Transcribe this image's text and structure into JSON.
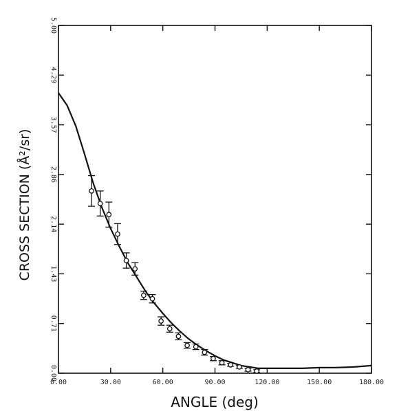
{
  "chart_data": {
    "type": "scatter",
    "title": "",
    "xlabel": "ANGLE (deg)",
    "ylabel": "CROSS SECTION (Å²/sr)",
    "xlim": [
      0,
      180
    ],
    "ylim": [
      0,
      5.0
    ],
    "x_ticks": [
      0,
      30,
      60,
      90,
      120,
      150,
      180
    ],
    "x_tick_labels": [
      "0.00",
      "30.00",
      "60.00",
      "90.00",
      "120.00",
      "150.00",
      "180.00"
    ],
    "y_ticks": [
      0,
      0.714,
      1.429,
      2.143,
      2.857,
      3.571,
      4.286,
      5.0
    ],
    "y_tick_labels": [
      "0.00",
      "0.71",
      "1.43",
      "2.14",
      "2.86",
      "3.57",
      "4.29",
      "5.00"
    ],
    "grid": false,
    "series": [
      {
        "kind": "line",
        "x": [
          0,
          5,
          10,
          15,
          20,
          25,
          30,
          35,
          40,
          45,
          50,
          55,
          60,
          65,
          70,
          75,
          80,
          85,
          90,
          95,
          100,
          105,
          110,
          115,
          120,
          130,
          140,
          150,
          160,
          170,
          180
        ],
        "y": [
          4.03,
          3.85,
          3.55,
          3.15,
          2.73,
          2.38,
          2.08,
          1.82,
          1.58,
          1.38,
          1.18,
          1.01,
          0.86,
          0.72,
          0.6,
          0.49,
          0.4,
          0.32,
          0.25,
          0.19,
          0.15,
          0.11,
          0.09,
          0.07,
          0.07,
          0.07,
          0.07,
          0.08,
          0.08,
          0.09,
          0.11
        ]
      },
      {
        "kind": "points",
        "x": [
          19,
          24,
          29,
          34,
          39,
          44,
          49,
          54,
          59,
          64,
          69,
          74,
          79,
          84,
          89,
          94,
          99,
          104,
          109,
          114
        ],
        "y": [
          2.62,
          2.44,
          2.28,
          2.0,
          1.62,
          1.5,
          1.12,
          1.07,
          0.75,
          0.64,
          0.53,
          0.4,
          0.38,
          0.3,
          0.21,
          0.15,
          0.12,
          0.09,
          0.05,
          0.03
        ],
        "err": [
          0.22,
          0.18,
          0.18,
          0.15,
          0.11,
          0.09,
          0.06,
          0.06,
          0.06,
          0.05,
          0.05,
          0.04,
          0.04,
          0.04,
          0.03,
          0.03,
          0.02,
          0.02,
          0.02,
          0.02
        ]
      }
    ]
  }
}
